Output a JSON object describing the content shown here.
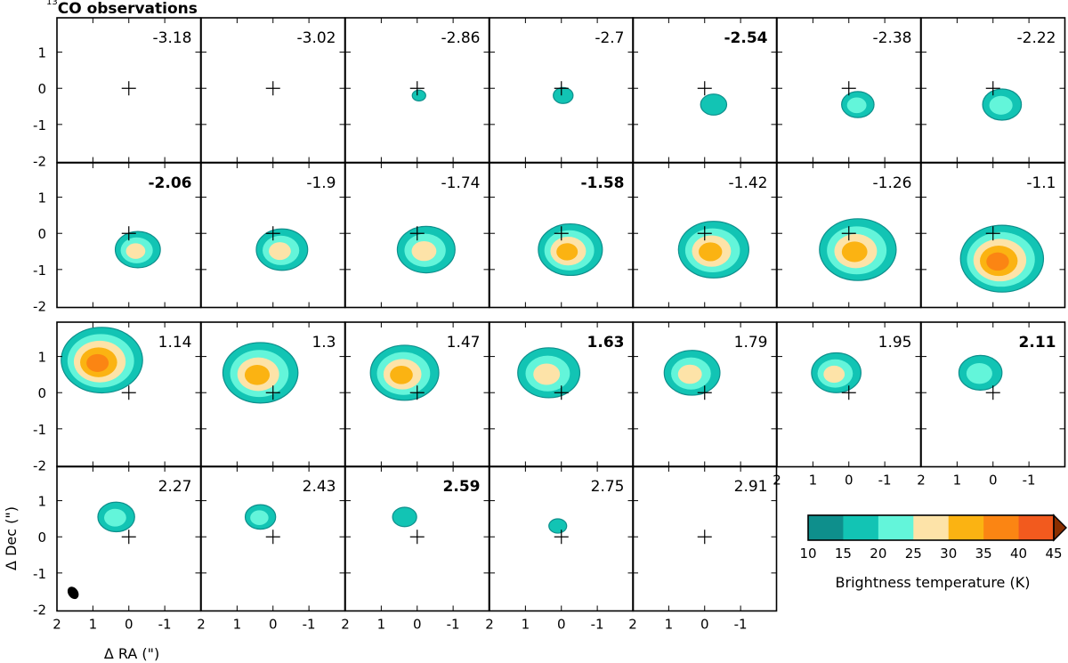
{
  "title": {
    "isotope": "13",
    "text": "CO observations"
  },
  "chart_data": {
    "type": "heatmap",
    "subtype": "channel-map",
    "title": "13CO observations",
    "xlabel": "Δ RA (\")",
    "ylabel": "Δ Dec (\")",
    "x_ticks": [
      "2",
      "1",
      "0",
      "-1"
    ],
    "y_ticks": [
      "1",
      "0",
      "-1",
      "-2"
    ],
    "xlim": [
      2,
      -2
    ],
    "ylim": [
      -2,
      2
    ],
    "channels_row1_label": [
      "-3.18",
      "-3.02",
      "-2.86",
      "-2.7",
      "-2.54",
      "-2.38",
      "-2.22"
    ],
    "channels_row2_label": [
      "-2.06",
      "-1.9",
      "-1.74",
      "-1.58",
      "-1.42",
      "-1.26",
      "-1.1"
    ],
    "channels_row3_label": [
      "1.14",
      "1.3",
      "1.47",
      "1.63",
      "1.79",
      "1.95",
      "2.11"
    ],
    "channels_row4_label": [
      "2.27",
      "2.43",
      "2.59",
      "2.75",
      "2.91"
    ],
    "bold_channels": [
      "-2.54",
      "-2.06",
      "-1.58",
      "1.63",
      "2.11",
      "2.59"
    ],
    "colorbar": {
      "label": "Brightness temperature (K)",
      "ticks": [
        "10",
        "15",
        "20",
        "25",
        "30",
        "35",
        "40",
        "45"
      ],
      "colors": [
        "#0e8f8c",
        "#12c4b4",
        "#63f5da",
        "#fde3a8",
        "#fbb312",
        "#fb8513",
        "#f25a1e"
      ],
      "extend_color": "#8a2f00",
      "range": [
        10,
        45
      ]
    },
    "marker": "+ at (0,0) phase center",
    "beam": "filled ellipse lower-left of channel 2.27"
  }
}
